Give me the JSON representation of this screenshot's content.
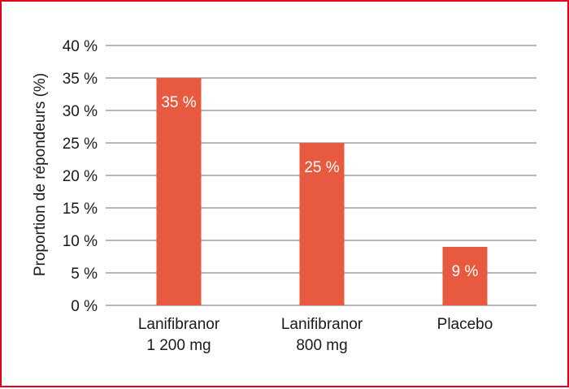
{
  "chart_data": {
    "type": "bar",
    "categories": [
      [
        "Lanifibranor",
        "1 200 mg"
      ],
      [
        "Lanifibranor",
        "800 mg"
      ],
      [
        "Placebo"
      ]
    ],
    "values": [
      35,
      25,
      9
    ],
    "data_labels": [
      "35 %",
      "25 %",
      "9 %"
    ],
    "title": "",
    "xlabel": "",
    "ylabel": "Proportion de répondeurs (%)",
    "ylim": [
      0,
      40
    ],
    "yticks": [
      0,
      5,
      10,
      15,
      20,
      25,
      30,
      35,
      40
    ],
    "ytick_labels": [
      "0 %",
      "5 %",
      "10 %",
      "15 %",
      "20 %",
      "25 %",
      "30 %",
      "35 %",
      "40 %"
    ],
    "grid": true,
    "legend": "none"
  },
  "colors": {
    "bar": "#e85a40",
    "frame": "#e2001a",
    "grid": "#8c8c8c"
  }
}
